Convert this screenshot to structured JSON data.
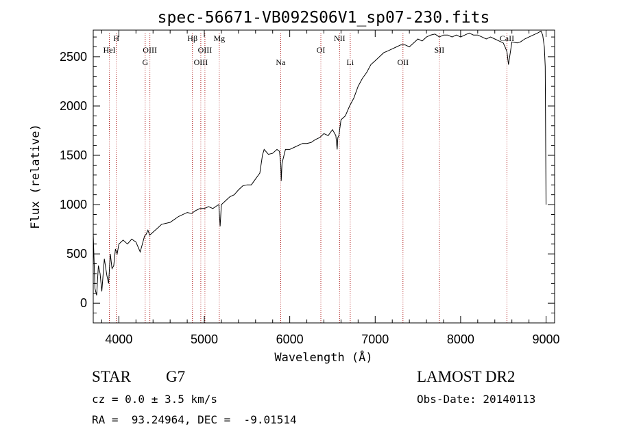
{
  "chart_data": {
    "type": "line",
    "title": "spec-56671-VB092S06V1_sp07-230.fits",
    "xlabel": "Wavelength (Å)",
    "ylabel": "Flux (relative)",
    "xlim": [
      3700,
      9100
    ],
    "ylim": [
      -200,
      2770
    ],
    "x_ticks": [
      4000,
      5000,
      6000,
      7000,
      8000,
      9000
    ],
    "y_ticks": [
      0,
      500,
      1000,
      1500,
      2000,
      2500
    ],
    "grid": false,
    "series": [
      {
        "x": [
          3700,
          3720,
          3740,
          3760,
          3780,
          3800,
          3830,
          3860,
          3880,
          3900,
          3920,
          3940,
          3960,
          3980,
          4000,
          4050,
          4100,
          4150,
          4200,
          4250,
          4300,
          4320,
          4340,
          4360,
          4400,
          4450,
          4500,
          4600,
          4700,
          4800,
          4850,
          4900,
          4950,
          5000,
          5050,
          5100,
          5150,
          5170,
          5185,
          5200,
          5250,
          5300,
          5350,
          5400,
          5450,
          5500,
          5550,
          5600,
          5650,
          5680,
          5700,
          5750,
          5800,
          5850,
          5880,
          5895,
          5900,
          5910,
          5950,
          6000,
          6050,
          6100,
          6150,
          6200,
          6250,
          6300,
          6350,
          6400,
          6450,
          6500,
          6540,
          6555,
          6563,
          6575,
          6600,
          6650,
          6700,
          6750,
          6800,
          6850,
          6900,
          6950,
          7000,
          7050,
          7100,
          7150,
          7200,
          7250,
          7300,
          7350,
          7400,
          7450,
          7500,
          7550,
          7600,
          7650,
          7700,
          7750,
          7800,
          7850,
          7900,
          7950,
          8000,
          8050,
          8100,
          8150,
          8200,
          8250,
          8300,
          8350,
          8400,
          8450,
          8498,
          8520,
          8542,
          8560,
          8600,
          8662,
          8700,
          8750,
          8800,
          8850,
          8900,
          8940,
          8960,
          8980,
          8990,
          9000
        ],
        "y": [
          700,
          150,
          80,
          380,
          300,
          120,
          450,
          280,
          200,
          500,
          350,
          380,
          550,
          500,
          600,
          640,
          600,
          650,
          620,
          520,
          680,
          700,
          740,
          690,
          720,
          760,
          800,
          820,
          880,
          920,
          910,
          940,
          960,
          960,
          980,
          960,
          990,
          1000,
          780,
          1000,
          1040,
          1080,
          1100,
          1150,
          1190,
          1200,
          1200,
          1260,
          1320,
          1500,
          1560,
          1510,
          1520,
          1560,
          1540,
          1400,
          1240,
          1420,
          1560,
          1560,
          1580,
          1600,
          1620,
          1620,
          1630,
          1660,
          1680,
          1720,
          1700,
          1760,
          1700,
          1560,
          1680,
          1700,
          1860,
          1900,
          2000,
          2080,
          2200,
          2280,
          2340,
          2420,
          2460,
          2500,
          2540,
          2560,
          2580,
          2600,
          2620,
          2620,
          2600,
          2640,
          2680,
          2660,
          2700,
          2720,
          2730,
          2700,
          2720,
          2720,
          2700,
          2720,
          2700,
          2720,
          2740,
          2720,
          2720,
          2700,
          2680,
          2700,
          2680,
          2660,
          2640,
          2600,
          2550,
          2420,
          2650,
          2640,
          2650,
          2680,
          2700,
          2720,
          2740,
          2760,
          2720,
          2600,
          2400,
          1000
        ]
      }
    ],
    "emission_lines": [
      {
        "label": "HeI",
        "x": 3889,
        "row": 2
      },
      {
        "label": "H",
        "x": 3970,
        "row": 1
      },
      {
        "label": "G",
        "x": 4308,
        "row": 3
      },
      {
        "label": "OIII",
        "x": 4363,
        "row": 2
      },
      {
        "label": "Hβ",
        "x": 4861,
        "row": 1
      },
      {
        "label": "OIII",
        "x": 4959,
        "row": 3
      },
      {
        "label": "OIII",
        "x": 5007,
        "row": 2
      },
      {
        "label": "Mg",
        "x": 5175,
        "row": 1
      },
      {
        "label": "Na",
        "x": 5894,
        "row": 3
      },
      {
        "label": "OI",
        "x": 6364,
        "row": 2
      },
      {
        "label": "NII",
        "x": 6583,
        "row": 1
      },
      {
        "label": "Li",
        "x": 6708,
        "row": 3
      },
      {
        "label": "OII",
        "x": 7325,
        "row": 3
      },
      {
        "label": "SII",
        "x": 7751,
        "row": 2
      },
      {
        "label": "CaII",
        "x": 8542,
        "row": 1
      }
    ]
  },
  "info": {
    "object_class": "STAR",
    "subclass": "G7",
    "survey": "LAMOST DR2",
    "redshift": "cz = 0.0 ± 3.5 km/s",
    "obs_date": "Obs-Date: 20140113",
    "coords": "RA =  93.24964, DEC =  -9.01514"
  }
}
